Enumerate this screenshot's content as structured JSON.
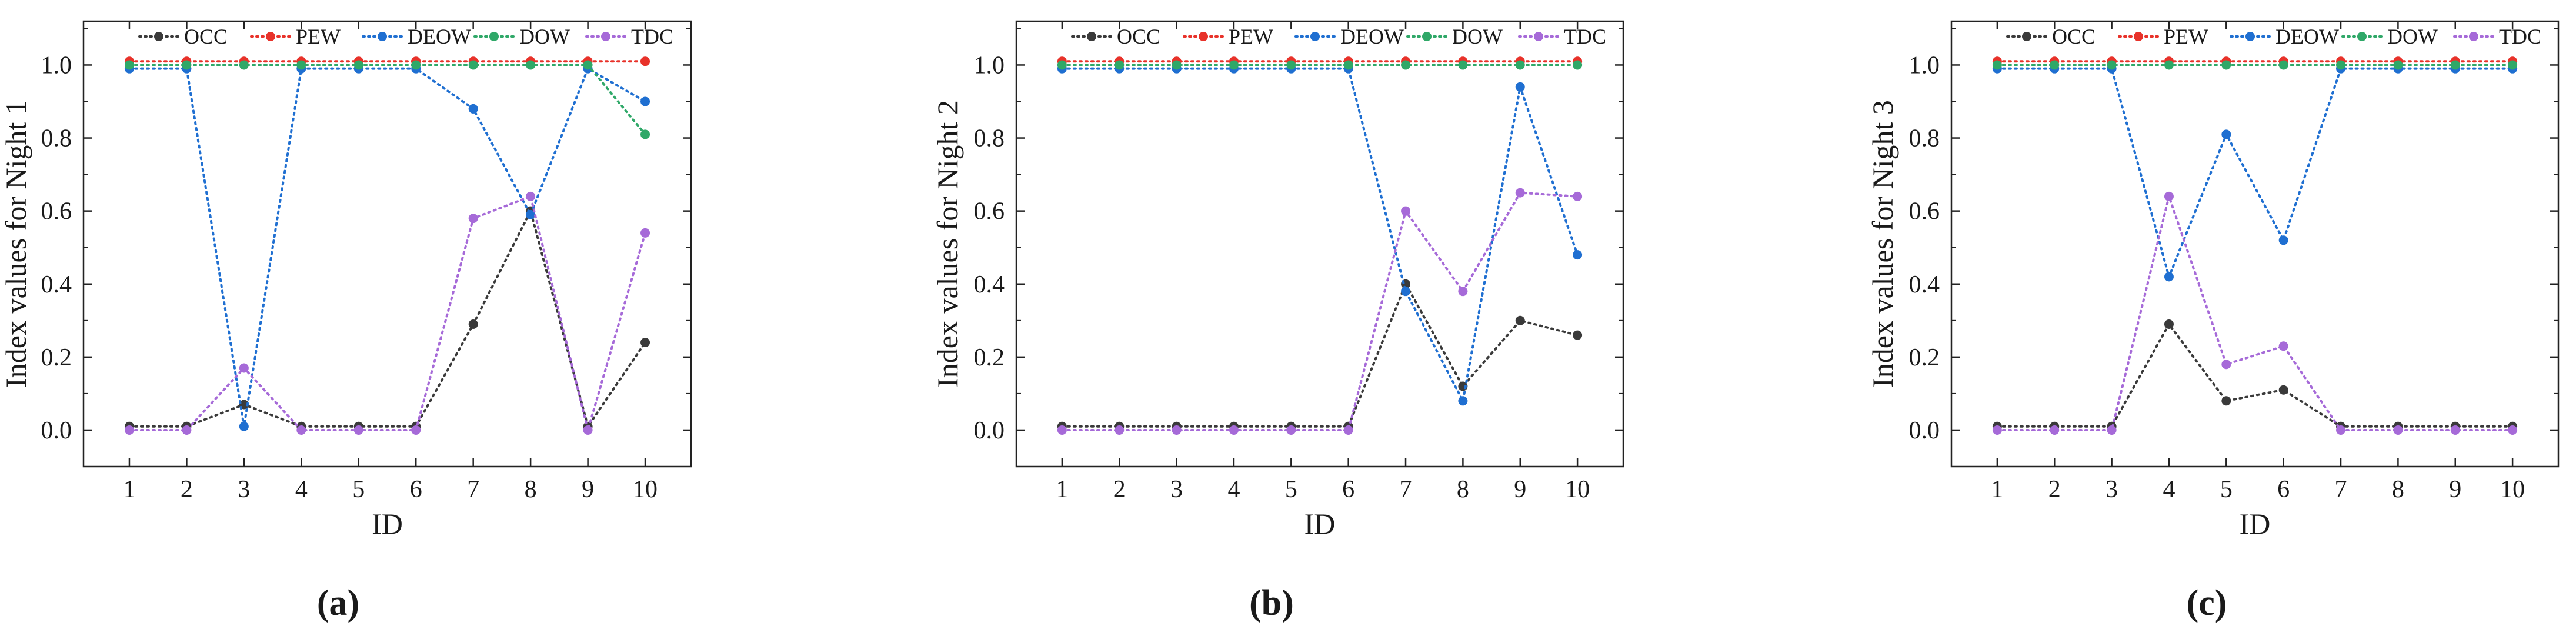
{
  "figure": {
    "panel_labels": [
      "(a)",
      "(b)",
      "(c)"
    ]
  },
  "chart_data": [
    {
      "type": "line",
      "panel": "(a)",
      "xlabel": "ID",
      "ylabel": "Index values for Night 1",
      "xlim": [
        0.2,
        10.8
      ],
      "ylim": [
        -0.1,
        1.12
      ],
      "x_ticks": [
        1,
        2,
        3,
        4,
        5,
        6,
        7,
        8,
        9,
        10
      ],
      "y_ticks": [
        "0.0",
        "0.2",
        "0.4",
        "0.6",
        "0.8",
        "1.0"
      ],
      "x": [
        1,
        2,
        3,
        4,
        5,
        6,
        7,
        8,
        9,
        10
      ],
      "legend_position": "top",
      "series": [
        {
          "name": "OCC",
          "color": "#3a3a3a",
          "values": [
            0.01,
            0.01,
            0.07,
            0.01,
            0.01,
            0.01,
            0.29,
            0.6,
            0.01,
            0.24
          ]
        },
        {
          "name": "PEW",
          "color": "#e8322a",
          "values": [
            1.01,
            1.01,
            1.01,
            1.01,
            1.01,
            1.01,
            1.01,
            1.01,
            1.01,
            1.01
          ]
        },
        {
          "name": "DEOW",
          "color": "#1f6fd1",
          "values": [
            0.99,
            0.99,
            0.01,
            0.99,
            0.99,
            0.99,
            0.88,
            0.59,
            0.99,
            0.9
          ]
        },
        {
          "name": "DOW",
          "color": "#2fa868",
          "values": [
            1.0,
            1.0,
            1.0,
            1.0,
            1.0,
            1.0,
            1.0,
            1.0,
            1.0,
            0.81
          ]
        },
        {
          "name": "TDC",
          "color": "#a66ad8",
          "values": [
            0.0,
            0.0,
            0.17,
            0.0,
            0.0,
            0.0,
            0.58,
            0.64,
            0.0,
            0.54
          ]
        }
      ]
    },
    {
      "type": "line",
      "panel": "(b)",
      "xlabel": "ID",
      "ylabel": "Index values for Night 2",
      "xlim": [
        0.2,
        10.8
      ],
      "ylim": [
        -0.1,
        1.12
      ],
      "x_ticks": [
        1,
        2,
        3,
        4,
        5,
        6,
        7,
        8,
        9,
        10
      ],
      "y_ticks": [
        "0.0",
        "0.2",
        "0.4",
        "0.6",
        "0.8",
        "1.0"
      ],
      "x": [
        1,
        2,
        3,
        4,
        5,
        6,
        7,
        8,
        9,
        10
      ],
      "legend_position": "top",
      "series": [
        {
          "name": "OCC",
          "color": "#3a3a3a",
          "values": [
            0.01,
            0.01,
            0.01,
            0.01,
            0.01,
            0.01,
            0.4,
            0.12,
            0.3,
            0.26
          ]
        },
        {
          "name": "PEW",
          "color": "#e8322a",
          "values": [
            1.01,
            1.01,
            1.01,
            1.01,
            1.01,
            1.01,
            1.01,
            1.01,
            1.01,
            1.01
          ]
        },
        {
          "name": "DEOW",
          "color": "#1f6fd1",
          "values": [
            0.99,
            0.99,
            0.99,
            0.99,
            0.99,
            0.99,
            0.38,
            0.08,
            0.94,
            0.48
          ]
        },
        {
          "name": "DOW",
          "color": "#2fa868",
          "values": [
            1.0,
            1.0,
            1.0,
            1.0,
            1.0,
            1.0,
            1.0,
            1.0,
            1.0,
            1.0
          ]
        },
        {
          "name": "TDC",
          "color": "#a66ad8",
          "values": [
            0.0,
            0.0,
            0.0,
            0.0,
            0.0,
            0.0,
            0.6,
            0.38,
            0.65,
            0.64
          ]
        }
      ]
    },
    {
      "type": "line",
      "panel": "(c)",
      "xlabel": "ID",
      "ylabel": "Index values for Night 3",
      "xlim": [
        0.2,
        10.8
      ],
      "ylim": [
        -0.1,
        1.12
      ],
      "x_ticks": [
        1,
        2,
        3,
        4,
        5,
        6,
        7,
        8,
        9,
        10
      ],
      "y_ticks": [
        "0.0",
        "0.2",
        "0.4",
        "0.6",
        "0.8",
        "1.0"
      ],
      "x": [
        1,
        2,
        3,
        4,
        5,
        6,
        7,
        8,
        9,
        10
      ],
      "legend_position": "top",
      "series": [
        {
          "name": "OCC",
          "color": "#3a3a3a",
          "values": [
            0.01,
            0.01,
            0.01,
            0.29,
            0.08,
            0.11,
            0.01,
            0.01,
            0.01,
            0.01
          ]
        },
        {
          "name": "PEW",
          "color": "#e8322a",
          "values": [
            1.01,
            1.01,
            1.01,
            1.01,
            1.01,
            1.01,
            1.01,
            1.01,
            1.01,
            1.01
          ]
        },
        {
          "name": "DEOW",
          "color": "#1f6fd1",
          "values": [
            0.99,
            0.99,
            0.99,
            0.42,
            0.81,
            0.52,
            0.99,
            0.99,
            0.99,
            0.99
          ]
        },
        {
          "name": "DOW",
          "color": "#2fa868",
          "values": [
            1.0,
            1.0,
            1.0,
            1.0,
            1.0,
            1.0,
            1.0,
            1.0,
            1.0,
            1.0
          ]
        },
        {
          "name": "TDC",
          "color": "#a66ad8",
          "values": [
            0.0,
            0.0,
            0.0,
            0.64,
            0.18,
            0.23,
            0.0,
            0.0,
            0.0,
            0.0
          ]
        }
      ]
    }
  ]
}
